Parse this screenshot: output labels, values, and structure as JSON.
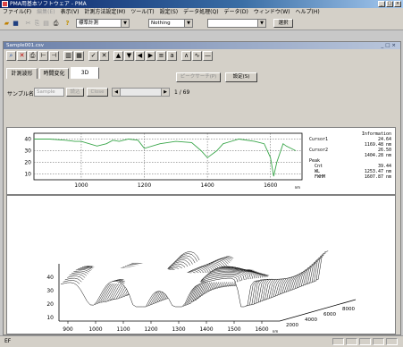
{
  "window": {
    "title": "PMA用基本ソフトウェア - PMA"
  },
  "menu": [
    "ファイル(F)",
    "編集(E)",
    "表示(V)",
    "計測方法設定(M)",
    "ツール(T)",
    "設定(S)",
    "データ処理(Q)",
    "データ(D)",
    "ウィンドウ(W)",
    "ヘルプ(H)"
  ],
  "toolbar": {
    "method_select": "標準計測",
    "filter_select": "Nothing",
    "select3": "",
    "select_button": "選択"
  },
  "child": {
    "title": "Sample001.csv"
  },
  "controls": {
    "peak_search_button": "ピークサーチ(P)",
    "settings_button": "設定(S)"
  },
  "sample": {
    "label": "サンプル名",
    "name": "Sample",
    "btn1": "読込",
    "btn2": "Close",
    "page": "1 / 69"
  },
  "tabs": [
    "計測波形",
    "時間変化",
    "3D"
  ],
  "info": {
    "heading": "Information",
    "rows": [
      {
        "label": "Cursor1",
        "v1": "24.64",
        "v2": "1169.48 nm"
      },
      {
        "label": "Cursor2",
        "v1": "26.50",
        "v2": "1404.28 nm"
      },
      {
        "label": "Peak",
        "v1": "",
        "v2": ""
      },
      {
        "label": "  Cnt",
        "v1": "39.44",
        "v2": ""
      },
      {
        "label": "  WL",
        "v1": "1253.47 nm",
        "v2": ""
      },
      {
        "label": "  FWHM",
        "v1": "1607.87 nm",
        "v2": ""
      }
    ]
  },
  "chart_data": [
    {
      "type": "line",
      "title": "",
      "xlabel": "nm",
      "ylabel": "",
      "xlim": [
        850,
        1700
      ],
      "ylim": [
        5,
        45
      ],
      "xticks": [
        1000,
        1200,
        1400,
        1600
      ],
      "yticks": [
        10,
        20,
        30,
        40
      ],
      "series": [
        {
          "color": "#39a64a",
          "x": [
            850,
            900,
            950,
            980,
            1000,
            1050,
            1080,
            1100,
            1120,
            1150,
            1180,
            1200,
            1250,
            1300,
            1350,
            1380,
            1400,
            1430,
            1450,
            1500,
            1550,
            1580,
            1600,
            1610,
            1620,
            1640,
            1650,
            1680
          ],
          "y": [
            40,
            40,
            39,
            38,
            38,
            34,
            36,
            39,
            38,
            40,
            39,
            32,
            36,
            38,
            37,
            30,
            24,
            30,
            36,
            40,
            38,
            36,
            24,
            8,
            20,
            36,
            34,
            30
          ]
        }
      ]
    },
    {
      "type": "area",
      "title": "",
      "xlabel": "nm",
      "ylabel": "",
      "xticks": [
        900,
        1000,
        1100,
        1200,
        1300,
        1400,
        1500,
        1600
      ],
      "yticks": [
        10,
        20,
        30,
        40
      ],
      "zticks": [
        2000,
        4000,
        6000,
        8000
      ]
    }
  ],
  "status": {
    "left": "EF"
  }
}
